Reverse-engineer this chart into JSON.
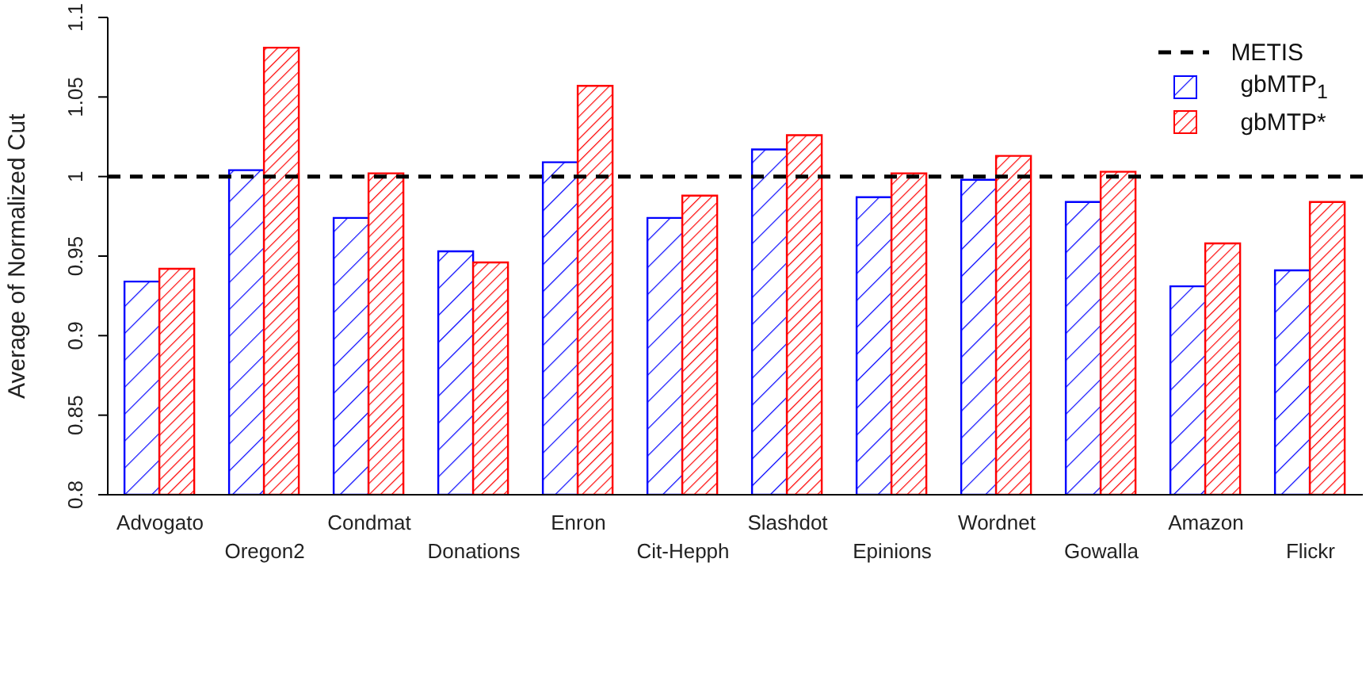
{
  "chart_data": {
    "type": "bar",
    "ylabel": "Average of Normalized Cut",
    "categories": [
      "Advogato",
      "Oregon2",
      "Condmat",
      "Donations",
      "Enron",
      "Cit-Hepph",
      "Slashdot",
      "Epinions",
      "Wordnet",
      "Gowalla",
      "Amazon",
      "Flickr"
    ],
    "series": [
      {
        "name": "gbMTP$_{1}$",
        "color": "#0000ff",
        "values": [
          0.934,
          1.004,
          0.974,
          0.953,
          1.009,
          0.974,
          1.017,
          0.987,
          0.998,
          0.984,
          0.931,
          0.941
        ]
      },
      {
        "name": "gbMTP*",
        "color": "#ff0000",
        "values": [
          0.942,
          1.081,
          1.002,
          0.946,
          1.057,
          0.988,
          1.026,
          1.002,
          1.013,
          1.003,
          0.958,
          0.984
        ]
      }
    ],
    "ylim": [
      0.8,
      1.1
    ],
    "yticks": [
      0.8,
      0.85,
      0.9,
      0.95,
      1,
      1.05,
      1.1
    ],
    "ref_lines": [
      {
        "axis": "y",
        "value": 1,
        "label": "METIS",
        "color": "#000000",
        "line_style": "dashed"
      }
    ],
    "grid": false,
    "legend": "top right"
  }
}
